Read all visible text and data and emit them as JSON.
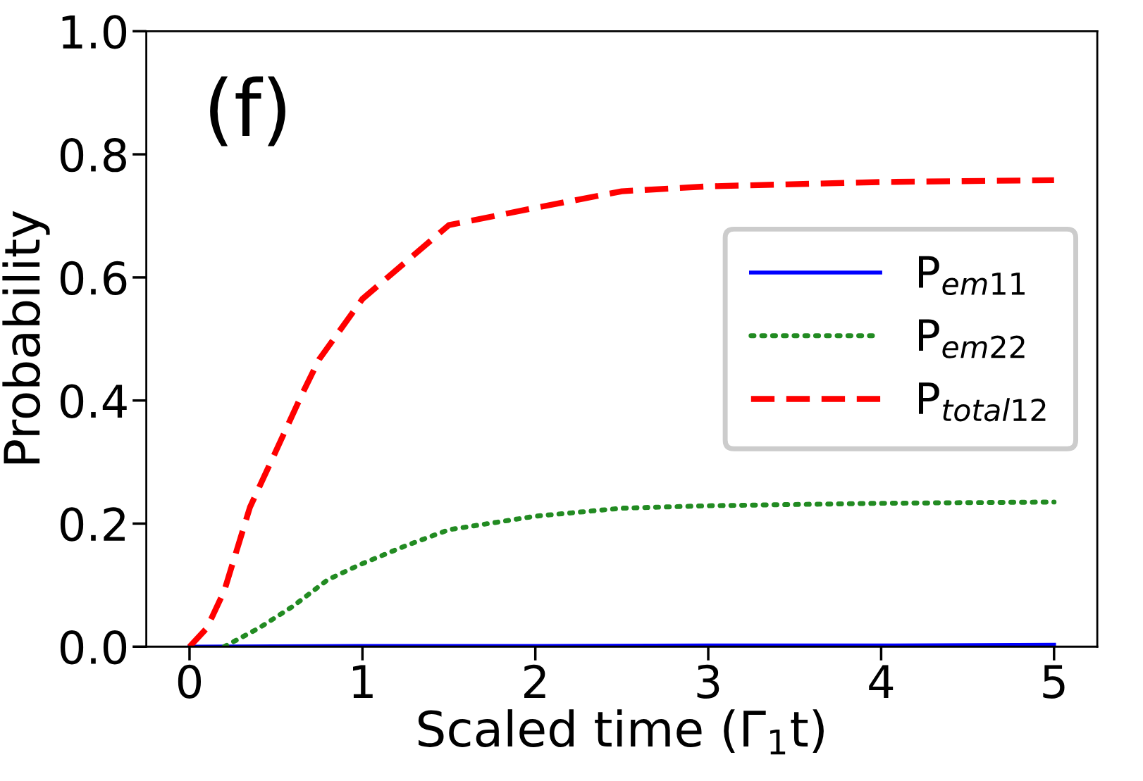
{
  "chart_data": {
    "type": "line",
    "xlabel": "Scaled time (Γ$_{1}$t)",
    "ylabel": "Probability",
    "annotations": [
      "(f)"
    ],
    "xlim": [
      -0.25,
      5.25
    ],
    "ylim": [
      0,
      1.0
    ],
    "xticks": [
      0,
      1,
      2,
      3,
      4,
      5
    ],
    "yticks": [
      {
        "value": 0,
        "label": "0.0"
      },
      {
        "value": 0.2,
        "label": "0.2"
      },
      {
        "value": 0.4,
        "label": "0.4"
      },
      {
        "value": 0.6,
        "label": "0.6"
      },
      {
        "value": 0.8,
        "label": "0.8"
      },
      {
        "value": 1.0,
        "label": "1.0"
      }
    ],
    "grid": false,
    "legend": "right",
    "series": [
      {
        "name": "P$_{em11}$",
        "color": "#0000ff",
        "line_style": "solid",
        "x": [
          0,
          1,
          2,
          3,
          4,
          5
        ],
        "values": [
          0,
          0.001,
          0.001,
          0.002,
          0.002,
          0.003
        ]
      },
      {
        "name": "P$_{em22}$",
        "color": "#228b22",
        "line_style": "dotted",
        "x": [
          0.2,
          0.4,
          0.6,
          0.8,
          1,
          1.25,
          1.5,
          2,
          2.5,
          3,
          4,
          5
        ],
        "values": [
          0,
          0.03,
          0.066,
          0.109,
          0.135,
          0.164,
          0.19,
          0.212,
          0.225,
          0.229,
          0.233,
          0.235
        ]
      },
      {
        "name": "P$_{total12}$",
        "color": "#ff0000",
        "line_style": "dashed",
        "x": [
          0,
          0.1,
          0.2,
          0.35,
          0.5,
          0.65,
          0.75,
          1,
          1.5,
          2,
          2.5,
          3,
          4,
          5
        ],
        "values": [
          0,
          0.03,
          0.09,
          0.227,
          0.318,
          0.41,
          0.467,
          0.565,
          0.685,
          0.713,
          0.74,
          0.748,
          0.755,
          0.758
        ]
      }
    ]
  }
}
